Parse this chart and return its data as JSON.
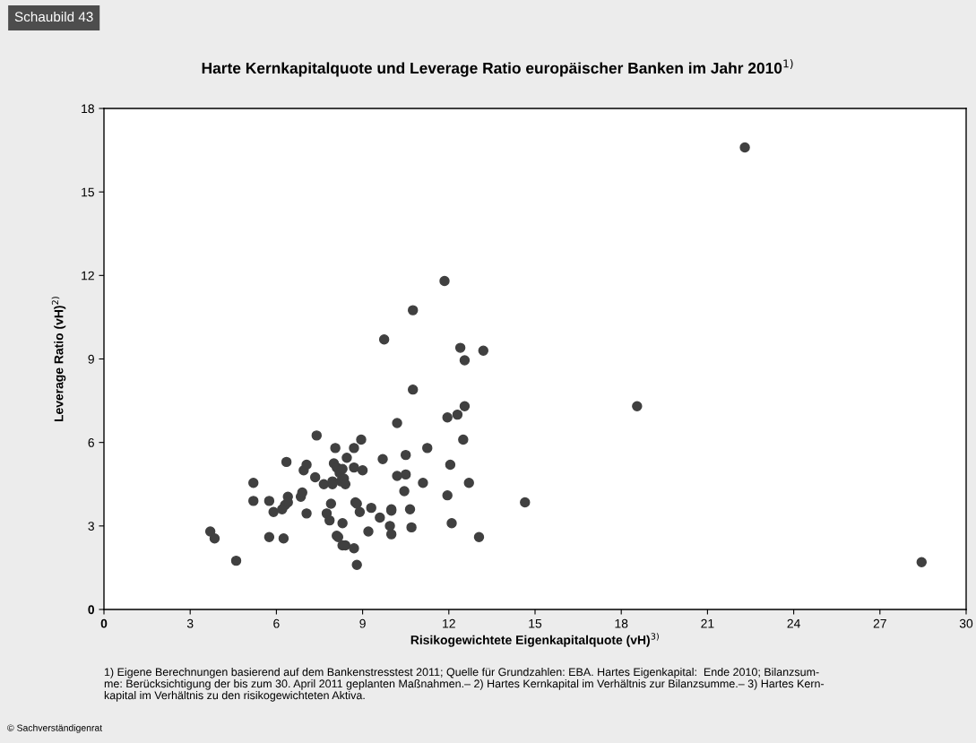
{
  "chart_data": {
    "type": "scatter",
    "title": "Harte Kernkapitalquote und Leverage Ratio europäischer Banken im Jahr 2010$^{1)}$",
    "xlabel": "Risikogewichtete Eigenkapitalquote (vH)$^{3)}$",
    "ylabel": "Leverage Ratio (vH)$^{2)}$",
    "annotations": [
      "Schaubild 43",
      "1) Eigene Berechnungen basierend auf dem Bankenstresstest 2011; Quelle für Grundzahlen: EBA. Hartes Eigenkapital:  Ende 2010; Bilanzsum-\nme: Berücksichtigung der bis zum 30. April 2011 geplanten Maßnahmen.– 2) Hartes Kernkapital im Verhältnis zur Bilanzsumme.– 3) Hartes Kern-\nkapital im Verhältnis zu den risikogewichteten Aktiva.",
      "© Sachverständigenrat"
    ],
    "x": [
      3.7,
      3.85,
      4.6,
      5.2,
      5.2,
      5.75,
      5.75,
      5.9,
      6.2,
      6.25,
      6.3,
      6.35,
      6.4,
      6.4,
      6.85,
      6.9,
      6.95,
      7.05,
      7.05,
      7.4,
      7.35,
      7.65,
      7.75,
      7.85,
      7.9,
      7.95,
      7.95,
      8.0,
      8.05,
      8.1,
      8.1,
      8.15,
      8.2,
      8.25,
      8.3,
      8.3,
      8.4,
      8.35,
      8.4,
      8.45,
      8.3,
      8.7,
      8.7,
      8.75,
      8.8,
      8.7,
      8.8,
      8.9,
      8.95,
      9.0,
      9.2,
      9.3,
      9.6,
      9.7,
      9.75,
      10.0,
      10.0,
      9.95,
      10.0,
      10.2,
      10.2,
      10.45,
      10.5,
      10.5,
      10.65,
      10.7,
      10.75,
      10.75,
      11.1,
      11.25,
      11.85,
      11.95,
      11.95,
      12.05,
      12.1,
      12.3,
      12.4,
      12.5,
      12.55,
      12.55,
      12.7,
      13.05,
      13.2,
      14.65,
      18.55,
      22.3,
      28.45
    ],
    "series": [
      {
        "color": "#404040",
        "values": [
          2.8,
          2.55,
          1.75,
          4.55,
          3.9,
          3.9,
          2.6,
          3.5,
          3.6,
          2.55,
          3.75,
          5.3,
          4.05,
          3.85,
          4.05,
          4.2,
          5.0,
          5.2,
          3.45,
          6.25,
          4.75,
          4.5,
          3.45,
          3.2,
          3.8,
          4.6,
          4.5,
          5.25,
          5.8,
          5.1,
          2.65,
          2.6,
          4.9,
          4.6,
          3.1,
          2.3,
          2.3,
          4.7,
          4.5,
          5.45,
          5.05,
          5.8,
          5.1,
          3.85,
          3.8,
          2.2,
          1.6,
          3.5,
          6.1,
          5.0,
          2.8,
          3.65,
          3.3,
          5.4,
          9.7,
          3.6,
          3.55,
          3.0,
          2.7,
          4.8,
          6.7,
          4.25,
          5.55,
          4.85,
          3.6,
          2.95,
          7.9,
          10.75,
          4.55,
          5.8,
          11.8,
          6.9,
          4.1,
          5.2,
          3.1,
          7.0,
          9.4,
          6.1,
          8.95,
          7.3,
          4.55,
          2.6,
          9.3,
          3.85,
          7.3,
          16.6,
          1.7
        ]
      }
    ],
    "xlim": [
      0,
      30
    ],
    "xticks": [
      0,
      3,
      6,
      9,
      12,
      15,
      18,
      21,
      24,
      27,
      30
    ],
    "ylim": [
      0,
      18
    ],
    "yticks": [
      0,
      3,
      6,
      9,
      12,
      15,
      18
    ],
    "marker": "circle",
    "grid": false,
    "legend": false
  }
}
